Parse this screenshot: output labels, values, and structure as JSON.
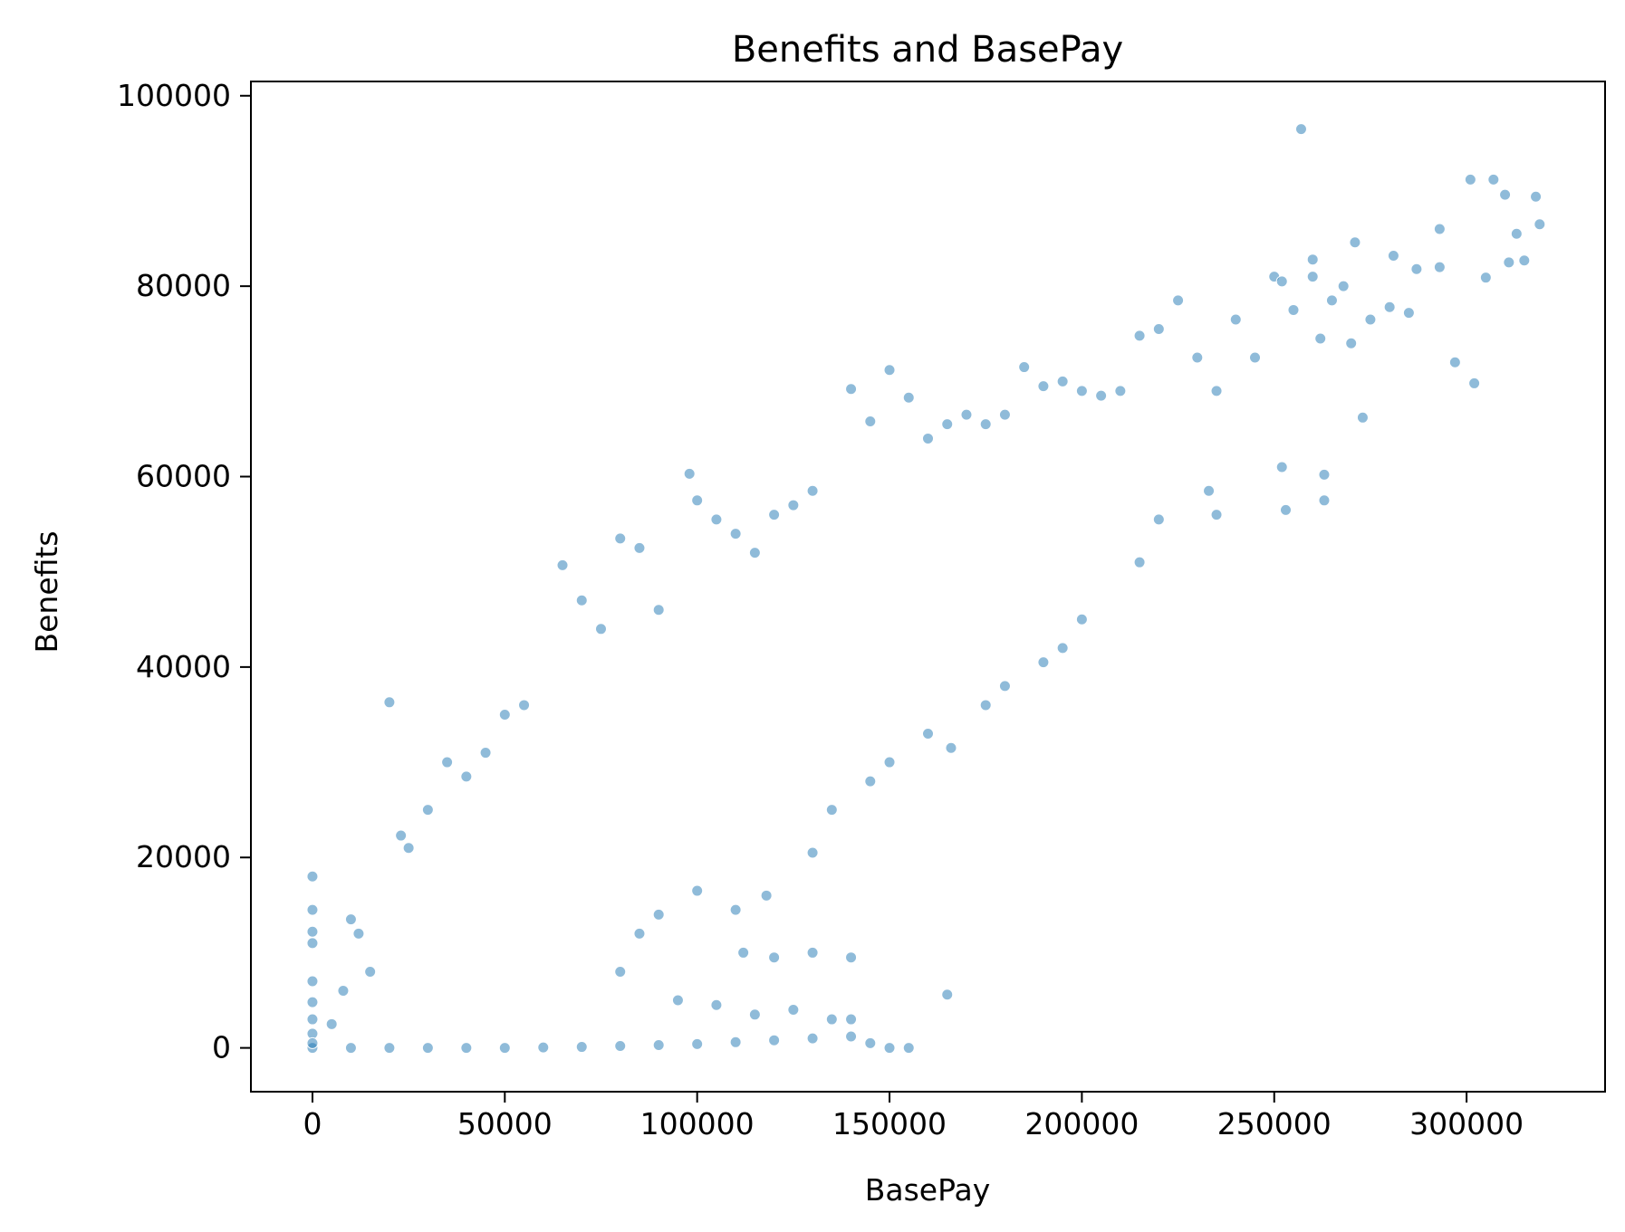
{
  "chart_data": {
    "type": "scatter",
    "title": "Benefits and BasePay",
    "xlabel": "BasePay",
    "ylabel": "Benefits",
    "xlim": [
      -16000,
      336000
    ],
    "ylim": [
      -4600,
      101500
    ],
    "xticks": [
      0,
      50000,
      100000,
      150000,
      200000,
      250000,
      300000
    ],
    "yticks": [
      0,
      20000,
      40000,
      60000,
      80000,
      100000
    ],
    "xtick_labels": [
      "0",
      "50000",
      "100000",
      "150000",
      "200000",
      "250000",
      "300000"
    ],
    "ytick_labels": [
      "0",
      "20000",
      "40000",
      "60000",
      "80000",
      "100000"
    ],
    "grid": false,
    "legend": "none",
    "marker_color": "#1f77b4",
    "marker_edge_color": "#ffffff",
    "marker_alpha": 0.5,
    "series": [
      {
        "name": "",
        "points": [
          [
            0,
            0
          ],
          [
            0,
            18000
          ],
          [
            0,
            14500
          ],
          [
            0,
            12200
          ],
          [
            0,
            11000
          ],
          [
            0,
            7000
          ],
          [
            0,
            4800
          ],
          [
            0,
            3000
          ],
          [
            0,
            1500
          ],
          [
            0,
            500
          ],
          [
            5000,
            2500
          ],
          [
            8000,
            6000
          ],
          [
            10000,
            13500
          ],
          [
            12000,
            12000
          ],
          [
            15000,
            8000
          ],
          [
            20000,
            36300
          ],
          [
            23000,
            22300
          ],
          [
            25000,
            21000
          ],
          [
            30000,
            25000
          ],
          [
            35000,
            30000
          ],
          [
            40000,
            28500
          ],
          [
            45000,
            31000
          ],
          [
            50000,
            35000
          ],
          [
            55000,
            36000
          ],
          [
            65000,
            50700
          ],
          [
            70000,
            47000
          ],
          [
            75000,
            44000
          ],
          [
            80000,
            53500
          ],
          [
            85000,
            52500
          ],
          [
            90000,
            46000
          ],
          [
            98000,
            60300
          ],
          [
            100000,
            57500
          ],
          [
            105000,
            55500
          ],
          [
            110000,
            54000
          ],
          [
            115000,
            52000
          ],
          [
            120000,
            56000
          ],
          [
            125000,
            57000
          ],
          [
            130000,
            58500
          ],
          [
            140000,
            69200
          ],
          [
            145000,
            65800
          ],
          [
            150000,
            71200
          ],
          [
            155000,
            68300
          ],
          [
            160000,
            64000
          ],
          [
            165000,
            65500
          ],
          [
            170000,
            66500
          ],
          [
            175000,
            65500
          ],
          [
            180000,
            66500
          ],
          [
            185000,
            71500
          ],
          [
            190000,
            69500
          ],
          [
            195000,
            70000
          ],
          [
            200000,
            69000
          ],
          [
            205000,
            68500
          ],
          [
            210000,
            69000
          ],
          [
            215000,
            74800
          ],
          [
            220000,
            75500
          ],
          [
            225000,
            78500
          ],
          [
            230000,
            72500
          ],
          [
            235000,
            69000
          ],
          [
            240000,
            76500
          ],
          [
            245000,
            72500
          ],
          [
            250000,
            81000
          ],
          [
            252000,
            80500
          ],
          [
            255000,
            77500
          ],
          [
            257000,
            96500
          ],
          [
            260000,
            82800
          ],
          [
            260000,
            81000
          ],
          [
            262000,
            74500
          ],
          [
            265000,
            78500
          ],
          [
            268000,
            80000
          ],
          [
            270000,
            74000
          ],
          [
            271000,
            84600
          ],
          [
            273000,
            66200
          ],
          [
            275000,
            76500
          ],
          [
            280000,
            77800
          ],
          [
            281000,
            83200
          ],
          [
            285000,
            77200
          ],
          [
            287000,
            81800
          ],
          [
            293000,
            86000
          ],
          [
            293000,
            82000
          ],
          [
            297000,
            72000
          ],
          [
            301000,
            91200
          ],
          [
            302000,
            69800
          ],
          [
            305000,
            80900
          ],
          [
            307000,
            91200
          ],
          [
            310000,
            89600
          ],
          [
            311000,
            82500
          ],
          [
            313000,
            85500
          ],
          [
            315000,
            82700
          ],
          [
            318000,
            89400
          ],
          [
            319000,
            86500
          ],
          [
            263000,
            60200
          ],
          [
            263000,
            57500
          ],
          [
            252000,
            61000
          ],
          [
            253000,
            56500
          ],
          [
            233000,
            58500
          ],
          [
            235000,
            56000
          ],
          [
            220000,
            55500
          ],
          [
            215000,
            51000
          ],
          [
            200000,
            45000
          ],
          [
            195000,
            42000
          ],
          [
            190000,
            40500
          ],
          [
            180000,
            38000
          ],
          [
            175000,
            36000
          ],
          [
            166000,
            31500
          ],
          [
            160000,
            33000
          ],
          [
            150000,
            30000
          ],
          [
            145000,
            28000
          ],
          [
            135000,
            25000
          ],
          [
            130000,
            20500
          ],
          [
            118000,
            16000
          ],
          [
            112000,
            10000
          ],
          [
            120000,
            9500
          ],
          [
            130000,
            10000
          ],
          [
            140000,
            9500
          ],
          [
            110000,
            14500
          ],
          [
            100000,
            16500
          ],
          [
            90000,
            14000
          ],
          [
            85000,
            12000
          ],
          [
            80000,
            8000
          ],
          [
            95000,
            5000
          ],
          [
            105000,
            4500
          ],
          [
            115000,
            3500
          ],
          [
            125000,
            4000
          ],
          [
            135000,
            3000
          ],
          [
            140000,
            3000
          ],
          [
            165000,
            5600
          ],
          [
            140000,
            1200
          ],
          [
            145000,
            500
          ],
          [
            150000,
            0
          ],
          [
            155000,
            0
          ],
          [
            130000,
            1000
          ],
          [
            120000,
            800
          ],
          [
            110000,
            600
          ],
          [
            100000,
            400
          ],
          [
            90000,
            300
          ],
          [
            80000,
            200
          ],
          [
            70000,
            100
          ],
          [
            60000,
            50
          ],
          [
            50000,
            0
          ],
          [
            40000,
            0
          ],
          [
            30000,
            0
          ],
          [
            20000,
            0
          ],
          [
            10000,
            0
          ]
        ]
      }
    ]
  }
}
